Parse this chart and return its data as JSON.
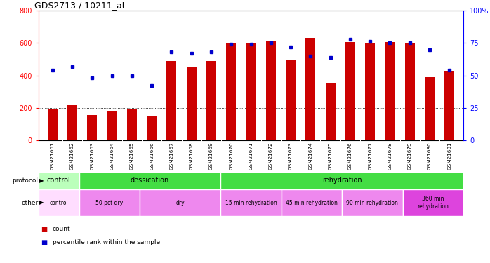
{
  "title": "GDS2713 / 10211_at",
  "samples": [
    "GSM21661",
    "GSM21662",
    "GSM21663",
    "GSM21664",
    "GSM21665",
    "GSM21666",
    "GSM21667",
    "GSM21668",
    "GSM21669",
    "GSM21670",
    "GSM21671",
    "GSM21672",
    "GSM21673",
    "GSM21674",
    "GSM21675",
    "GSM21676",
    "GSM21677",
    "GSM21678",
    "GSM21679",
    "GSM21680",
    "GSM21681"
  ],
  "counts": [
    190,
    215,
    155,
    180,
    195,
    145,
    490,
    455,
    490,
    600,
    595,
    610,
    495,
    630,
    355,
    605,
    600,
    605,
    600,
    390,
    430
  ],
  "percentiles": [
    54,
    57,
    48,
    50,
    50,
    42,
    68,
    67,
    68,
    74,
    74,
    75,
    72,
    65,
    64,
    78,
    76,
    75,
    75,
    70,
    54
  ],
  "bar_color": "#cc0000",
  "dot_color": "#0000cc",
  "ylim_left": [
    0,
    800
  ],
  "ylim_right": [
    0,
    100
  ],
  "yticks_left": [
    0,
    200,
    400,
    600,
    800
  ],
  "yticks_right": [
    0,
    25,
    50,
    75,
    100
  ],
  "ytick_labels_right": [
    "0",
    "25",
    "50",
    "75",
    "100%"
  ],
  "protocol_segments": [
    {
      "text": "control",
      "start": 0,
      "end": 2,
      "color": "#bbffbb"
    },
    {
      "text": "dessication",
      "start": 2,
      "end": 9,
      "color": "#44dd44"
    },
    {
      "text": "rehydration",
      "start": 9,
      "end": 21,
      "color": "#44dd44"
    }
  ],
  "other_segments": [
    {
      "text": "control",
      "start": 0,
      "end": 2,
      "color": "#ffddff"
    },
    {
      "text": "50 pct dry",
      "start": 2,
      "end": 5,
      "color": "#ee88ee"
    },
    {
      "text": "dry",
      "start": 5,
      "end": 9,
      "color": "#ee88ee"
    },
    {
      "text": "15 min rehydration",
      "start": 9,
      "end": 12,
      "color": "#ee88ee"
    },
    {
      "text": "45 min rehydration",
      "start": 12,
      "end": 15,
      "color": "#ee88ee"
    },
    {
      "text": "90 min rehydration",
      "start": 15,
      "end": 18,
      "color": "#ee88ee"
    },
    {
      "text": "360 min\nrehydration",
      "start": 18,
      "end": 21,
      "color": "#dd44dd"
    }
  ],
  "xtick_bg_color": "#c8c8c8",
  "bg_color": "#ffffff"
}
